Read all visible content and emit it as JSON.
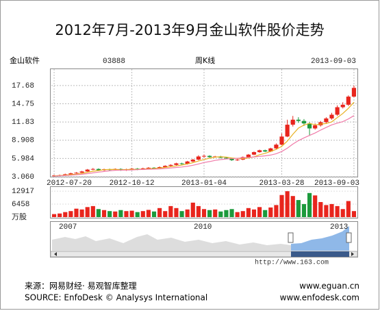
{
  "header": {
    "title": "2012年7月-2013年9月金山软件股价走势"
  },
  "chart_data": {
    "type": "candlestick",
    "stock_name": "金山软件",
    "code": "03888",
    "period": "周K线",
    "date": "2013-09-03",
    "categories": [
      "2012-07-20",
      null,
      null,
      null,
      null,
      null,
      null,
      null,
      null,
      null,
      null,
      null,
      null,
      null,
      "2012-10-12",
      null,
      null,
      null,
      null,
      null,
      null,
      null,
      null,
      null,
      null,
      null,
      null,
      "2013-01-04",
      null,
      null,
      null,
      null,
      null,
      null,
      null,
      null,
      null,
      null,
      null,
      null,
      null,
      "2013-03-28",
      null,
      null,
      null,
      null,
      null,
      null,
      null,
      null,
      null,
      null,
      null,
      null,
      "2013-09-03"
    ],
    "open": [
      3.15,
      3.25,
      3.3,
      3.45,
      3.6,
      3.7,
      3.9,
      4.2,
      4.3,
      4.1,
      4.25,
      4.15,
      4.3,
      4.1,
      4.25,
      4.35,
      4.2,
      4.4,
      4.5,
      4.45,
      4.6,
      4.8,
      4.95,
      5.2,
      5.1,
      5.5,
      5.8,
      6.3,
      6.4,
      6.2,
      6.3,
      6.1,
      6.0,
      5.7,
      5.8,
      6.2,
      6.6,
      7.0,
      7.3,
      7.1,
      7.6,
      8.2,
      9.5,
      11.4,
      12.2,
      12.0,
      11.6,
      10.8,
      11.3,
      11.8,
      12.4,
      13.0,
      14.2,
      14.6,
      15.9
    ],
    "high": [
      3.35,
      3.4,
      3.55,
      3.7,
      3.8,
      4.0,
      4.3,
      4.45,
      4.4,
      4.35,
      4.35,
      4.4,
      4.4,
      4.35,
      4.45,
      4.45,
      4.5,
      4.6,
      4.6,
      4.7,
      4.9,
      5.05,
      5.3,
      5.3,
      5.6,
      5.9,
      6.5,
      6.6,
      6.5,
      6.4,
      6.4,
      6.2,
      6.1,
      5.9,
      6.3,
      6.7,
      7.1,
      7.4,
      7.4,
      7.7,
      8.4,
      10.0,
      12.2,
      12.8,
      12.6,
      12.3,
      11.8,
      11.6,
      12.0,
      12.6,
      13.3,
      14.5,
      15.0,
      16.1,
      17.68
    ],
    "low": [
      3.06,
      3.15,
      3.25,
      3.4,
      3.55,
      3.65,
      3.85,
      4.1,
      4.0,
      4.0,
      4.05,
      4.05,
      4.0,
      4.0,
      4.15,
      4.1,
      4.15,
      4.3,
      4.35,
      4.4,
      4.55,
      4.7,
      4.85,
      5.0,
      5.0,
      5.4,
      5.7,
      6.1,
      6.1,
      6.1,
      6.0,
      5.9,
      5.6,
      5.6,
      5.7,
      6.1,
      6.5,
      6.9,
      7.0,
      7.0,
      7.5,
      8.1,
      9.4,
      11.1,
      11.7,
      11.2,
      9.6,
      10.6,
      11.1,
      11.6,
      12.2,
      12.8,
      14.0,
      14.4,
      15.8
    ],
    "close": [
      3.25,
      3.3,
      3.45,
      3.6,
      3.7,
      3.9,
      4.2,
      4.3,
      4.1,
      4.25,
      4.15,
      4.3,
      4.1,
      4.25,
      4.35,
      4.2,
      4.4,
      4.5,
      4.45,
      4.6,
      4.8,
      4.95,
      5.2,
      5.1,
      5.5,
      5.8,
      6.3,
      6.4,
      6.2,
      6.3,
      6.1,
      6.0,
      5.7,
      5.8,
      6.2,
      6.6,
      7.0,
      7.3,
      7.1,
      7.6,
      8.2,
      9.5,
      11.4,
      12.2,
      12.0,
      11.6,
      10.8,
      11.3,
      11.8,
      12.4,
      13.0,
      14.2,
      14.6,
      15.9,
      17.3
    ],
    "lines": [
      {
        "color": "#e8b020",
        "values": [
          3.2,
          3.25,
          3.3,
          3.4,
          3.46,
          3.59,
          3.77,
          3.94,
          4.04,
          4.19,
          4.22,
          4.22,
          4.18,
          4.21,
          4.23,
          4.24,
          4.26,
          4.34,
          4.38,
          4.43,
          4.55,
          4.66,
          4.8,
          4.93,
          5.11,
          5.31,
          5.58,
          5.82,
          6.04,
          6.2,
          6.26,
          6.2,
          6.06,
          5.98,
          5.96,
          6.06,
          6.26,
          6.58,
          6.8,
          7.12,
          7.44,
          7.94,
          8.76,
          9.86,
          10.86,
          11.34,
          11.6,
          11.38,
          11.5,
          11.58,
          11.86,
          12.54,
          13.2,
          14.02,
          15.0
        ]
      },
      {
        "color": "#f07aa8",
        "values": [
          3.15,
          3.2,
          3.25,
          3.3,
          3.38,
          3.45,
          3.55,
          3.68,
          3.8,
          3.9,
          4.0,
          4.08,
          4.11,
          4.12,
          4.14,
          4.19,
          4.22,
          4.26,
          4.28,
          4.31,
          4.38,
          4.45,
          4.54,
          4.62,
          4.73,
          4.89,
          5.1,
          5.33,
          5.49,
          5.67,
          5.8,
          5.9,
          5.95,
          6.01,
          6.08,
          6.16,
          6.23,
          6.32,
          6.41,
          6.53,
          6.75,
          7.1,
          7.63,
          8.29,
          8.85,
          9.29,
          9.68,
          10.07,
          10.54,
          10.95,
          11.37,
          11.65,
          11.89,
          12.32,
          12.85
        ]
      }
    ],
    "up_color": "#e8251d",
    "down_color": "#1c9a3c",
    "ylim": [
      3.06,
      20.3
    ],
    "yticks": [
      {
        "value": 3.06,
        "label": "3.060"
      },
      5.984,
      8.908,
      11.83,
      14.75,
      17.68
    ],
    "volume": [
      1500,
      1800,
      2500,
      3000,
      4200,
      3800,
      5000,
      5500,
      4000,
      3500,
      3000,
      2800,
      3500,
      3000,
      3200,
      2500,
      3000,
      3600,
      2800,
      4500,
      3000,
      5500,
      4500,
      3000,
      3800,
      7200,
      5500,
      4000,
      3500,
      3800,
      2800,
      3500,
      4000,
      2500,
      3000,
      4500,
      3800,
      5000,
      3500,
      4800,
      6000,
      11000,
      12900,
      10500,
      8500,
      6500,
      12000,
      10800,
      7500,
      6000,
      6500,
      5500,
      4000,
      8000,
      3000
    ],
    "volume_lim": [
      0,
      15000
    ],
    "volume_ticks": [
      {
        "value": 0,
        "label": "万股"
      },
      6458,
      12917
    ],
    "grid": true
  },
  "navigator": {
    "labels": [
      "2007",
      "2010",
      "2013"
    ],
    "url": "http://www.163.com"
  },
  "footer": {
    "source_cn": "来源：网易财经· 易观智库整理",
    "source_en": "SOURCE: EnfoDesk © Analysys International",
    "site1": "www.eguan.cn",
    "site2": "www.enfodesk.com"
  }
}
